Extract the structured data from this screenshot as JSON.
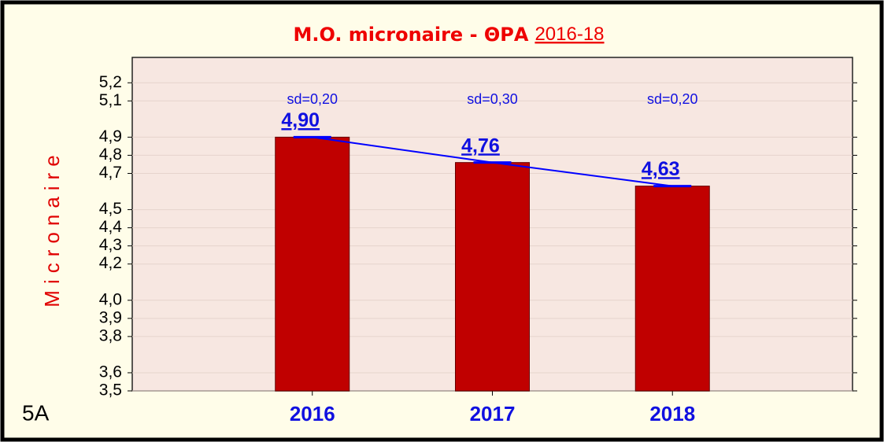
{
  "chart_data": {
    "type": "bar",
    "title": "M.O. micronaire - ΘΡΑ",
    "title_suffix": "2016-18",
    "y_label": "Micronaire",
    "panel_label": "5A",
    "categories": [
      "2016",
      "2017",
      "2018"
    ],
    "values": [
      4.9,
      4.76,
      4.63
    ],
    "value_labels": [
      "4,90",
      "4,76",
      "4,63"
    ],
    "sd_labels": [
      "sd=0,20",
      "sd=0,30",
      "sd=0,20"
    ],
    "color": "#c00000",
    "line_color": "#0000ff",
    "ylim": [
      3.5,
      5.34
    ],
    "yticks": [
      {
        "value": 3.5,
        "label": "3,5"
      },
      {
        "value": 3.6,
        "label": "3,6"
      },
      {
        "value": 3.8,
        "label": "3,8"
      },
      {
        "value": 3.9,
        "label": "3,9"
      },
      {
        "value": 4.0,
        "label": "4,0"
      },
      {
        "value": 4.2,
        "label": "4,2"
      },
      {
        "value": 4.3,
        "label": "4,3"
      },
      {
        "value": 4.4,
        "label": "4,4"
      },
      {
        "value": 4.5,
        "label": "4,5"
      },
      {
        "value": 4.7,
        "label": "4,7"
      },
      {
        "value": 4.8,
        "label": "4,8"
      },
      {
        "value": 4.9,
        "label": "4,9"
      },
      {
        "value": 5.1,
        "label": "5,1"
      },
      {
        "value": 5.2,
        "label": "5,2"
      }
    ],
    "grid": true
  }
}
